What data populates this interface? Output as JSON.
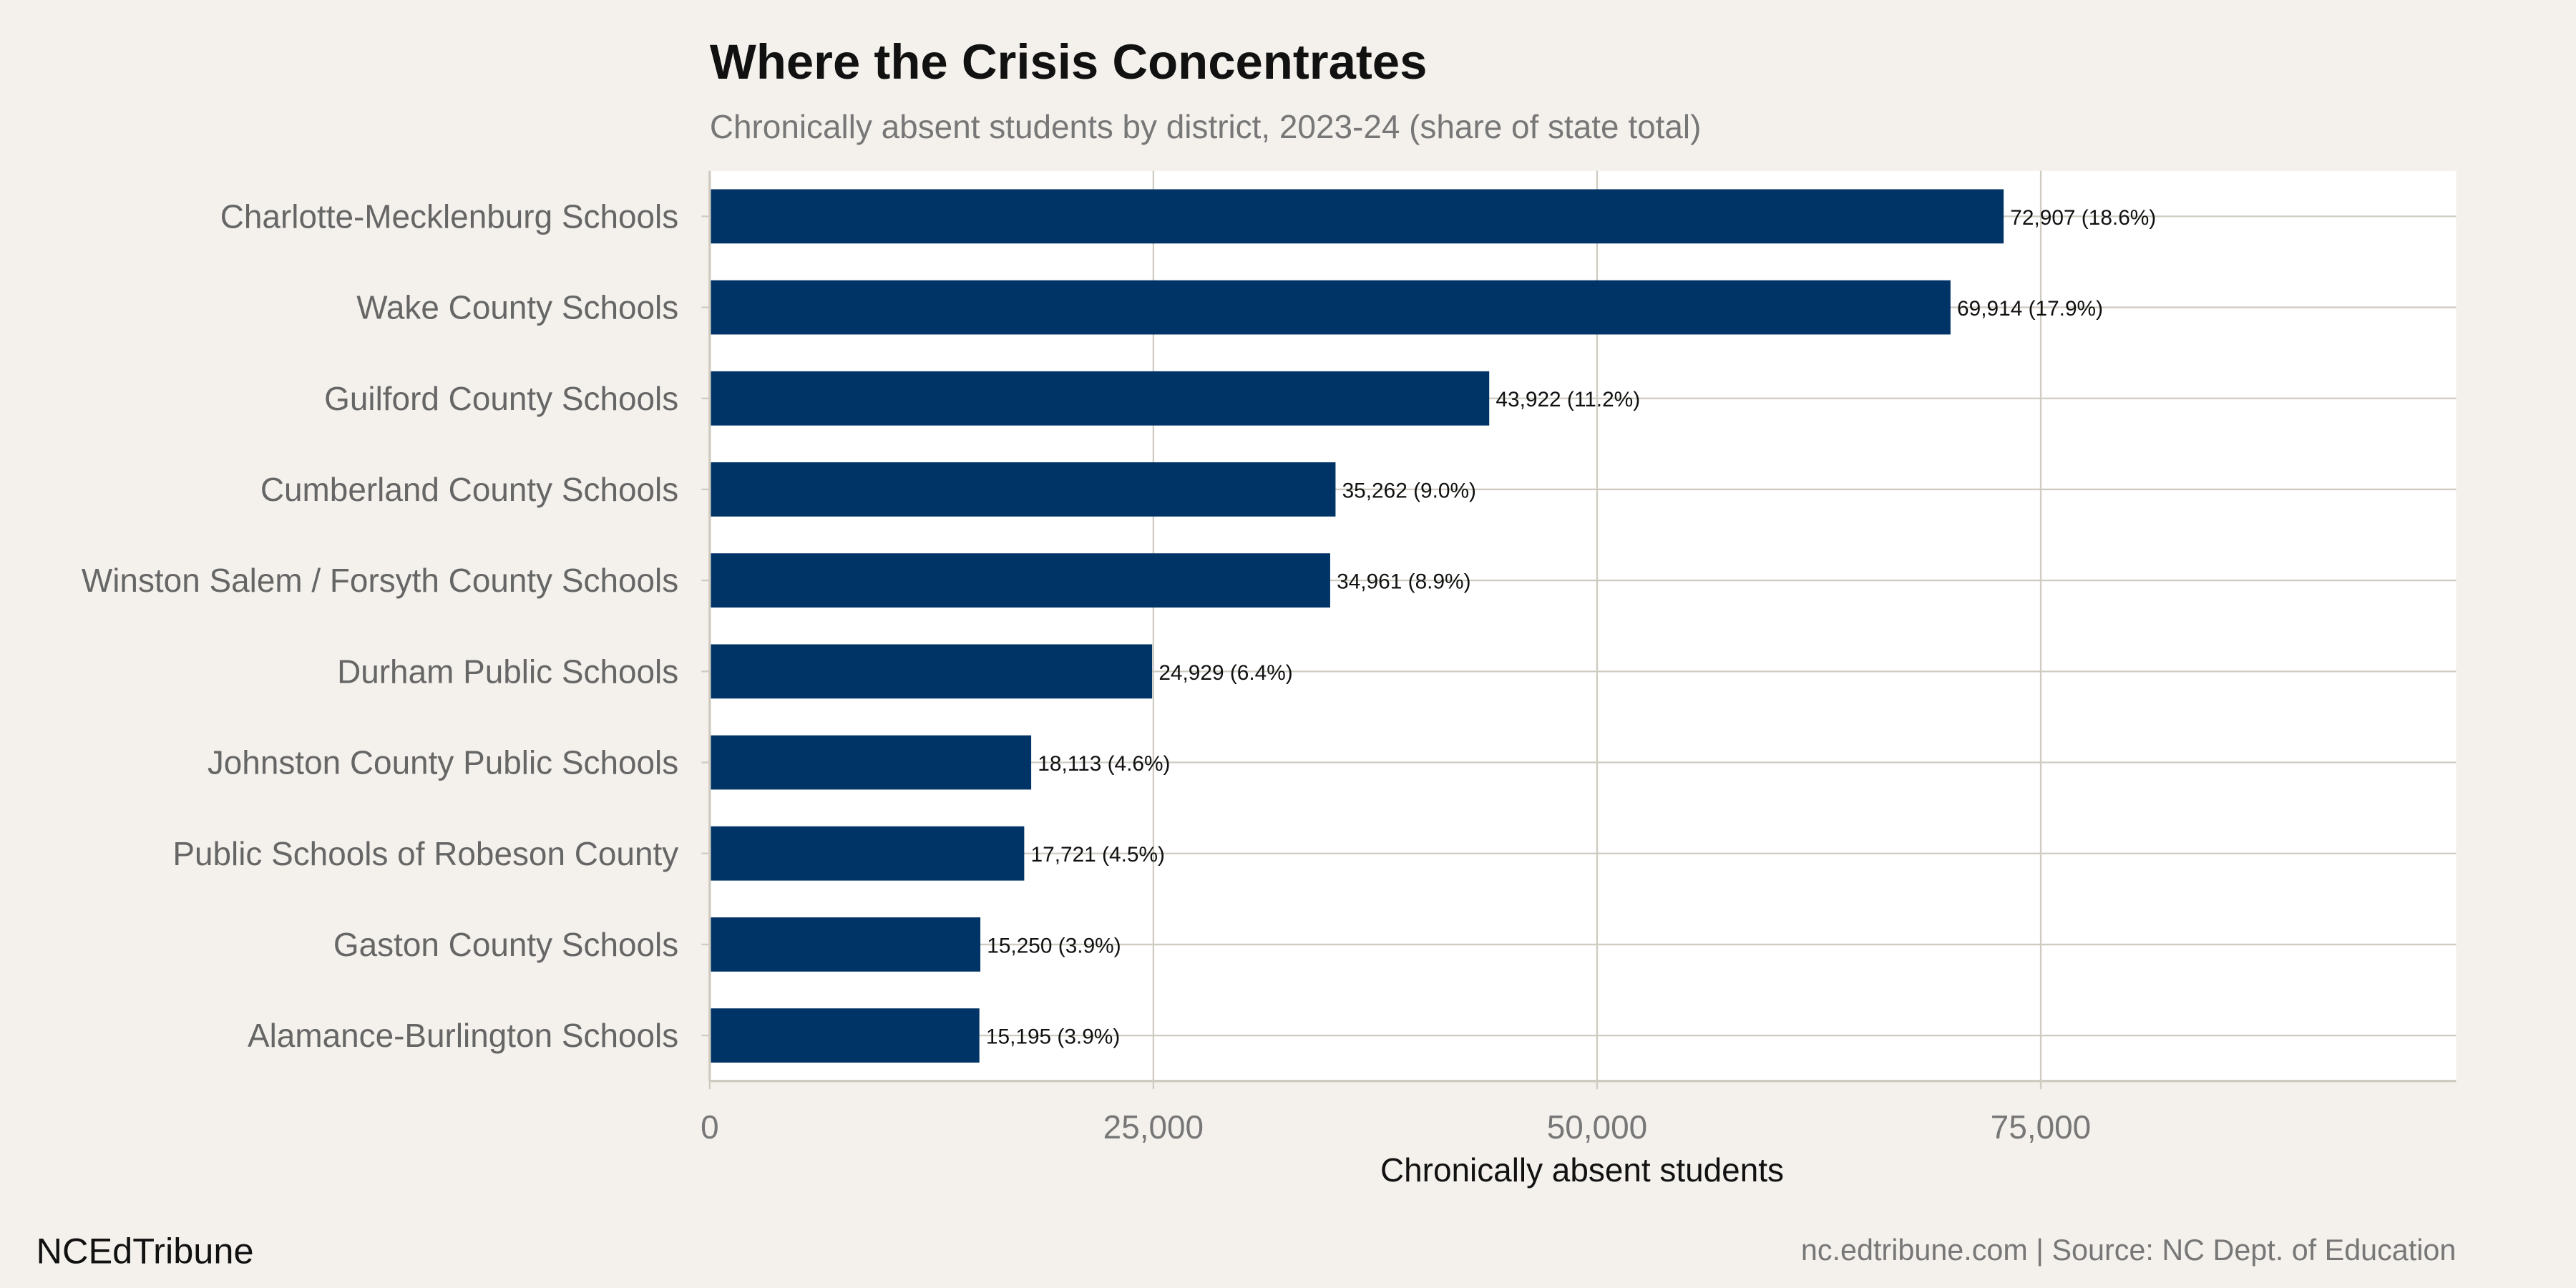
{
  "chart_data": {
    "type": "bar",
    "orientation": "horizontal",
    "title": "Where the Crisis Concentrates",
    "subtitle": "Chronically absent students by district, 2023-24 (share of state total)",
    "xlabel": "Chronically absent students",
    "ylabel": "",
    "xlim": [
      0,
      98400
    ],
    "xticks": [
      0,
      25000,
      50000,
      75000
    ],
    "xtick_labels": [
      "0",
      "25,000",
      "50,000",
      "75,000"
    ],
    "grid": true,
    "categories": [
      "Charlotte-Mecklenburg Schools",
      "Wake County Schools",
      "Guilford County Schools",
      "Cumberland County Schools",
      "Winston Salem / Forsyth County Schools",
      "Durham Public Schools",
      "Johnston County Public Schools",
      "Public Schools of Robeson County",
      "Gaston County Schools",
      "Alamance-Burlington Schools"
    ],
    "values": [
      72907,
      69914,
      43922,
      35262,
      34961,
      24929,
      18113,
      17721,
      15250,
      15195
    ],
    "data_labels": [
      "72,907 (18.6%)",
      "69,914 (17.9%)",
      "43,922 (11.2%)",
      "35,262 (9.0%)",
      "34,961 (8.9%)",
      "24,929 (6.4%)",
      "18,113 (4.6%)",
      "17,721 (4.5%)",
      "15,250 (3.9%)",
      "15,195 (3.9%)"
    ],
    "bar_color": "#003366"
  },
  "footer": {
    "brand": "NCEdTribune",
    "source": "nc.edtribune.com | Source: NC Dept. of Education"
  }
}
